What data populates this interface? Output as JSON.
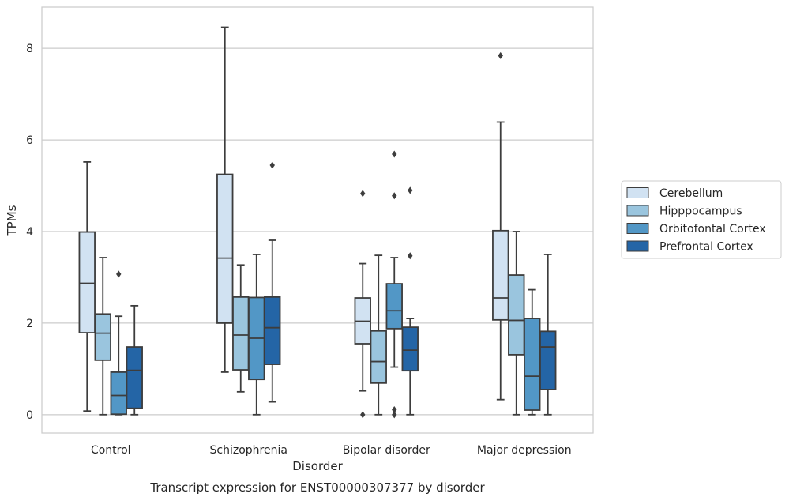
{
  "chart_data": {
    "type": "box",
    "xlabel": "Disorder",
    "ylabel": "TPMs",
    "caption": "Transcript expression for ENST00000307377 by disorder",
    "categories": [
      "Control",
      "Schizophrenia",
      "Bipolar disorder",
      "Major depression"
    ],
    "ylim": [
      -0.4,
      8.9
    ],
    "yticks": [
      0,
      2,
      4,
      6,
      8
    ],
    "grid": "horizontal",
    "legend_position": "right",
    "series": [
      {
        "name": "Cerebellum",
        "color": "#d1e2f2",
        "boxes": [
          {
            "whisker_low": 0.08,
            "q1": 1.79,
            "median": 2.87,
            "q3": 3.99,
            "whisker_high": 5.52,
            "outliers": []
          },
          {
            "whisker_low": 0.93,
            "q1": 2.0,
            "median": 3.42,
            "q3": 5.25,
            "whisker_high": 8.46,
            "outliers": []
          },
          {
            "whisker_low": 0.52,
            "q1": 1.55,
            "median": 2.04,
            "q3": 2.55,
            "whisker_high": 3.3,
            "outliers": [
              4.83,
              0.0
            ]
          },
          {
            "whisker_low": 0.33,
            "q1": 2.07,
            "median": 2.55,
            "q3": 4.02,
            "whisker_high": 6.39,
            "outliers": [
              7.84
            ]
          }
        ]
      },
      {
        "name": "Hipppocampus",
        "color": "#9ac5de",
        "boxes": [
          {
            "whisker_low": 0.0,
            "q1": 1.19,
            "median": 1.78,
            "q3": 2.2,
            "whisker_high": 3.43,
            "outliers": []
          },
          {
            "whisker_low": 0.5,
            "q1": 0.98,
            "median": 1.74,
            "q3": 2.57,
            "whisker_high": 3.27,
            "outliers": []
          },
          {
            "whisker_low": 0.0,
            "q1": 0.69,
            "median": 1.16,
            "q3": 1.83,
            "whisker_high": 3.48,
            "outliers": []
          },
          {
            "whisker_low": 0.0,
            "q1": 1.31,
            "median": 2.06,
            "q3": 3.05,
            "whisker_high": 4.0,
            "outliers": []
          }
        ]
      },
      {
        "name": "Orbitofontal Cortex",
        "color": "#5297c6",
        "boxes": [
          {
            "whisker_low": 0.0,
            "q1": 0.01,
            "median": 0.42,
            "q3": 0.93,
            "whisker_high": 2.15,
            "outliers": [
              3.07
            ]
          },
          {
            "whisker_low": 0.0,
            "q1": 0.77,
            "median": 1.67,
            "q3": 2.56,
            "whisker_high": 3.5,
            "outliers": []
          },
          {
            "whisker_low": 1.04,
            "q1": 1.88,
            "median": 2.27,
            "q3": 2.86,
            "whisker_high": 3.43,
            "outliers": [
              5.69,
              4.78,
              0.11,
              0.0
            ]
          },
          {
            "whisker_low": 0.0,
            "q1": 0.1,
            "median": 0.84,
            "q3": 2.1,
            "whisker_high": 2.73,
            "outliers": []
          }
        ]
      },
      {
        "name": "Prefrontal Cortex",
        "color": "#2465a6",
        "boxes": [
          {
            "whisker_low": 0.0,
            "q1": 0.14,
            "median": 0.97,
            "q3": 1.48,
            "whisker_high": 2.38,
            "outliers": []
          },
          {
            "whisker_low": 0.28,
            "q1": 1.1,
            "median": 1.9,
            "q3": 2.57,
            "whisker_high": 3.81,
            "outliers": [
              5.45
            ]
          },
          {
            "whisker_low": 0.0,
            "q1": 0.96,
            "median": 1.41,
            "q3": 1.91,
            "whisker_high": 2.1,
            "outliers": [
              4.9,
              3.47
            ]
          },
          {
            "whisker_low": 0.0,
            "q1": 0.55,
            "median": 1.48,
            "q3": 1.82,
            "whisker_high": 3.5,
            "outliers": []
          }
        ]
      }
    ]
  }
}
